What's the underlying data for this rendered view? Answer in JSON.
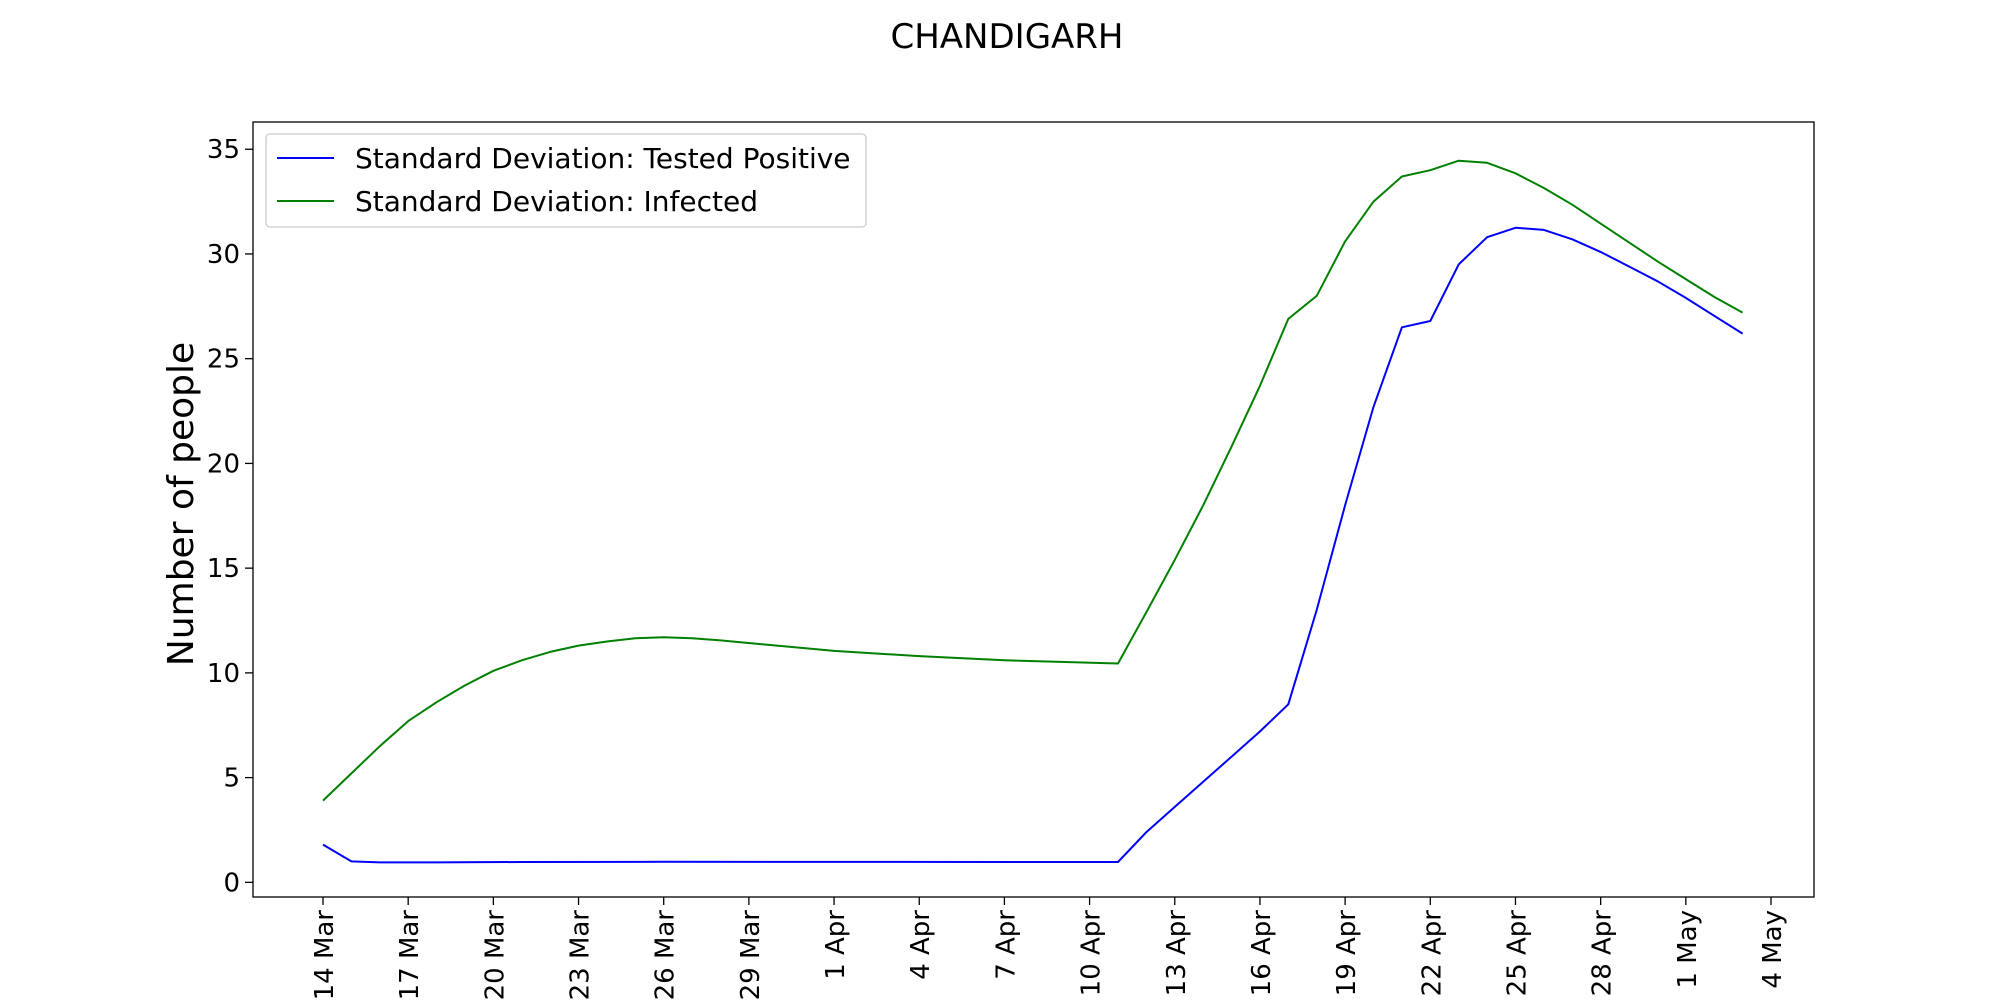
{
  "chart_data": {
    "type": "line",
    "title": "CHANDIGARH",
    "xlabel": "",
    "ylabel": "Number of people",
    "ylim": [
      -0.7,
      36.3
    ],
    "yticks": [
      0,
      5,
      10,
      15,
      20,
      25,
      30,
      35
    ],
    "x_tick_labels": [
      "14 Mar",
      "17 Mar",
      "20 Mar",
      "23 Mar",
      "26 Mar",
      "29 Mar",
      "1 Apr",
      "4 Apr",
      "7 Apr",
      "10 Apr",
      "13 Apr",
      "16 Apr",
      "19 Apr",
      "22 Apr",
      "25 Apr",
      "28 Apr",
      "1 May",
      "4 May"
    ],
    "legend_position": "top-left",
    "grid": false,
    "series": [
      {
        "name": "Standard Deviation: Tested Positive",
        "color": "#0000ff",
        "points": [
          [
            "14 Mar",
            1.8
          ],
          [
            "15 Mar",
            1.0
          ],
          [
            "16 Mar",
            0.95
          ],
          [
            "18 Mar",
            0.95
          ],
          [
            "21 Mar",
            0.97
          ],
          [
            "26 Mar",
            0.98
          ],
          [
            "11 Apr",
            0.97
          ],
          [
            "12 Apr",
            2.4
          ],
          [
            "13 Apr",
            3.6
          ],
          [
            "14 Apr",
            4.8
          ],
          [
            "15 Apr",
            6.0
          ],
          [
            "16 Apr",
            7.2
          ],
          [
            "17 Apr",
            8.5
          ],
          [
            "18 Apr",
            13.0
          ],
          [
            "19 Apr",
            18.0
          ],
          [
            "20 Apr",
            22.7
          ],
          [
            "21 Apr",
            26.5
          ],
          [
            "22 Apr",
            26.8
          ],
          [
            "23 Apr",
            29.5
          ],
          [
            "24 Apr",
            30.8
          ],
          [
            "25 Apr",
            31.25
          ],
          [
            "26 Apr",
            31.15
          ],
          [
            "27 Apr",
            30.7
          ],
          [
            "28 Apr",
            30.1
          ],
          [
            "29 Apr",
            29.4
          ],
          [
            "30 Apr",
            28.7
          ],
          [
            "1 May",
            27.9
          ],
          [
            "2 May",
            27.05
          ],
          [
            "3 May",
            26.2
          ]
        ]
      },
      {
        "name": "Standard Deviation: Infected",
        "color": "#008000",
        "points": [
          [
            "14 Mar",
            3.9
          ],
          [
            "15 Mar",
            5.2
          ],
          [
            "16 Mar",
            6.5
          ],
          [
            "17 Mar",
            7.7
          ],
          [
            "18 Mar",
            8.6
          ],
          [
            "19 Mar",
            9.4
          ],
          [
            "20 Mar",
            10.1
          ],
          [
            "21 Mar",
            10.6
          ],
          [
            "22 Mar",
            11.0
          ],
          [
            "23 Mar",
            11.3
          ],
          [
            "24 Mar",
            11.5
          ],
          [
            "25 Mar",
            11.65
          ],
          [
            "26 Mar",
            11.7
          ],
          [
            "27 Mar",
            11.65
          ],
          [
            "28 Mar",
            11.55
          ],
          [
            "1 Apr",
            11.05
          ],
          [
            "4 Apr",
            10.8
          ],
          [
            "7 Apr",
            10.6
          ],
          [
            "11 Apr",
            10.45
          ],
          [
            "12 Apr",
            12.9
          ],
          [
            "13 Apr",
            15.4
          ],
          [
            "14 Apr",
            18.0
          ],
          [
            "15 Apr",
            20.8
          ],
          [
            "16 Apr",
            23.7
          ],
          [
            "17 Apr",
            26.9
          ],
          [
            "18 Apr",
            28.0
          ],
          [
            "19 Apr",
            30.6
          ],
          [
            "20 Apr",
            32.5
          ],
          [
            "21 Apr",
            33.7
          ],
          [
            "22 Apr",
            34.0
          ],
          [
            "23 Apr",
            34.45
          ],
          [
            "24 Apr",
            34.35
          ],
          [
            "25 Apr",
            33.85
          ],
          [
            "26 Apr",
            33.15
          ],
          [
            "27 Apr",
            32.35
          ],
          [
            "28 Apr",
            31.45
          ],
          [
            "29 Apr",
            30.55
          ],
          [
            "30 Apr",
            29.65
          ],
          [
            "1 May",
            28.8
          ],
          [
            "2 May",
            27.95
          ],
          [
            "3 May",
            27.2
          ]
        ]
      }
    ]
  }
}
